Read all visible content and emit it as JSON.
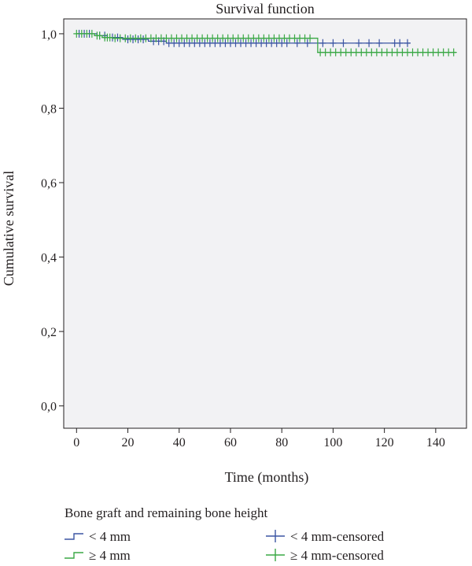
{
  "chart_data": {
    "type": "line",
    "subtype": "kaplan-meier survival step plot",
    "title": "Survival function",
    "xlabel": "Time (months)",
    "ylabel": "Cumulative survival",
    "xlim": [
      -5,
      152
    ],
    "ylim": [
      -0.06,
      1.04
    ],
    "x_ticks": [
      0,
      20,
      40,
      60,
      80,
      100,
      120,
      140
    ],
    "y_ticks": [
      0.0,
      0.2,
      0.4,
      0.6,
      0.8,
      1.0
    ],
    "x_tick_labels": [
      "0",
      "20",
      "40",
      "60",
      "80",
      "100",
      "120",
      "140"
    ],
    "y_tick_labels": [
      "0,0",
      "0,2",
      "0,4",
      "0,6",
      "0,8",
      "1,0"
    ],
    "grid": false,
    "plot_background": "#f2f2f4",
    "legend": {
      "title": "Bone graft and remaining bone height",
      "placement": "bottom",
      "entries": [
        {
          "label": "< 4 mm",
          "kind": "line",
          "series": 0
        },
        {
          "label": "< 4 mm-censored",
          "kind": "censor",
          "series": 0
        },
        {
          "label": "≥ 4 mm",
          "kind": "line",
          "series": 1
        },
        {
          "label": "≥ 4 mm-censored",
          "kind": "censor",
          "series": 1
        }
      ]
    },
    "series": [
      {
        "name": "< 4 mm",
        "color": "#3b55a3",
        "steps": [
          [
            0,
            1.0
          ],
          [
            8,
            0.995
          ],
          [
            12,
            0.99
          ],
          [
            18,
            0.985
          ],
          [
            28,
            0.98
          ],
          [
            35,
            0.975
          ],
          [
            130,
            0.975
          ]
        ],
        "censored": [
          [
            1,
            1.0
          ],
          [
            3,
            1.0
          ],
          [
            5,
            1.0
          ],
          [
            9,
            0.995
          ],
          [
            11,
            0.995
          ],
          [
            14,
            0.99
          ],
          [
            16,
            0.99
          ],
          [
            20,
            0.985
          ],
          [
            22,
            0.985
          ],
          [
            24,
            0.985
          ],
          [
            26,
            0.985
          ],
          [
            30,
            0.98
          ],
          [
            32,
            0.98
          ],
          [
            34,
            0.98
          ],
          [
            36,
            0.975
          ],
          [
            38,
            0.975
          ],
          [
            40,
            0.975
          ],
          [
            42,
            0.975
          ],
          [
            44,
            0.975
          ],
          [
            46,
            0.975
          ],
          [
            48,
            0.975
          ],
          [
            50,
            0.975
          ],
          [
            52,
            0.975
          ],
          [
            54,
            0.975
          ],
          [
            56,
            0.975
          ],
          [
            58,
            0.975
          ],
          [
            60,
            0.975
          ],
          [
            62,
            0.975
          ],
          [
            64,
            0.975
          ],
          [
            66,
            0.975
          ],
          [
            68,
            0.975
          ],
          [
            70,
            0.975
          ],
          [
            72,
            0.975
          ],
          [
            74,
            0.975
          ],
          [
            76,
            0.975
          ],
          [
            78,
            0.975
          ],
          [
            80,
            0.975
          ],
          [
            82,
            0.975
          ],
          [
            86,
            0.975
          ],
          [
            90,
            0.975
          ],
          [
            96,
            0.975
          ],
          [
            100,
            0.975
          ],
          [
            104,
            0.975
          ],
          [
            110,
            0.975
          ],
          [
            114,
            0.975
          ],
          [
            118,
            0.975
          ],
          [
            124,
            0.975
          ],
          [
            126,
            0.975
          ],
          [
            129,
            0.975
          ]
        ]
      },
      {
        "name": "≥ 4 mm",
        "color": "#3aa845",
        "steps": [
          [
            0,
            1.0
          ],
          [
            7,
            0.995
          ],
          [
            10,
            0.99
          ],
          [
            14,
            0.988
          ],
          [
            94,
            0.95
          ],
          [
            148,
            0.95
          ]
        ],
        "censored": [
          [
            0,
            1.0
          ],
          [
            2,
            1.0
          ],
          [
            4,
            1.0
          ],
          [
            6,
            1.0
          ],
          [
            8,
            0.995
          ],
          [
            9,
            0.995
          ],
          [
            11,
            0.99
          ],
          [
            12,
            0.99
          ],
          [
            13,
            0.99
          ],
          [
            15,
            0.988
          ],
          [
            17,
            0.988
          ],
          [
            19,
            0.988
          ],
          [
            21,
            0.988
          ],
          [
            23,
            0.988
          ],
          [
            25,
            0.988
          ],
          [
            27,
            0.988
          ],
          [
            29,
            0.988
          ],
          [
            31,
            0.988
          ],
          [
            33,
            0.988
          ],
          [
            35,
            0.988
          ],
          [
            37,
            0.988
          ],
          [
            39,
            0.988
          ],
          [
            41,
            0.988
          ],
          [
            43,
            0.988
          ],
          [
            45,
            0.988
          ],
          [
            47,
            0.988
          ],
          [
            49,
            0.988
          ],
          [
            51,
            0.988
          ],
          [
            53,
            0.988
          ],
          [
            55,
            0.988
          ],
          [
            57,
            0.988
          ],
          [
            59,
            0.988
          ],
          [
            61,
            0.988
          ],
          [
            63,
            0.988
          ],
          [
            65,
            0.988
          ],
          [
            67,
            0.988
          ],
          [
            69,
            0.988
          ],
          [
            71,
            0.988
          ],
          [
            73,
            0.988
          ],
          [
            75,
            0.988
          ],
          [
            77,
            0.988
          ],
          [
            79,
            0.988
          ],
          [
            81,
            0.988
          ],
          [
            83,
            0.988
          ],
          [
            85,
            0.988
          ],
          [
            87,
            0.988
          ],
          [
            89,
            0.988
          ],
          [
            91,
            0.988
          ],
          [
            95,
            0.95
          ],
          [
            97,
            0.95
          ],
          [
            99,
            0.95
          ],
          [
            101,
            0.95
          ],
          [
            103,
            0.95
          ],
          [
            105,
            0.95
          ],
          [
            107,
            0.95
          ],
          [
            109,
            0.95
          ],
          [
            111,
            0.95
          ],
          [
            113,
            0.95
          ],
          [
            115,
            0.95
          ],
          [
            117,
            0.95
          ],
          [
            119,
            0.95
          ],
          [
            121,
            0.95
          ],
          [
            123,
            0.95
          ],
          [
            125,
            0.95
          ],
          [
            127,
            0.95
          ],
          [
            129,
            0.95
          ],
          [
            131,
            0.95
          ],
          [
            133,
            0.95
          ],
          [
            135,
            0.95
          ],
          [
            137,
            0.95
          ],
          [
            139,
            0.95
          ],
          [
            141,
            0.95
          ],
          [
            143,
            0.95
          ],
          [
            145,
            0.95
          ],
          [
            147,
            0.95
          ]
        ]
      }
    ]
  }
}
